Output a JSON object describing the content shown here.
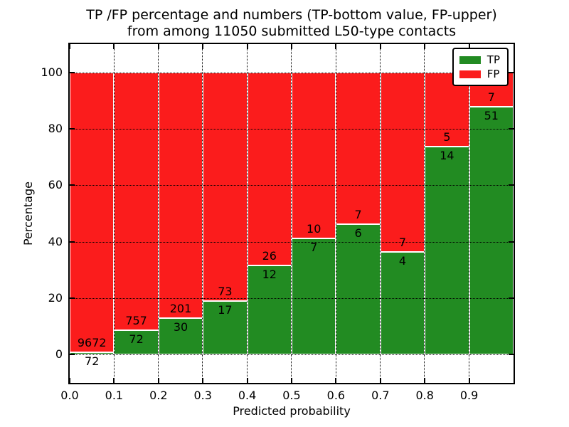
{
  "title": {
    "line1": "TP /FP percentage and numbers (TP-bottom value, FP-upper)",
    "line2": "from among 11050 submitted L50-type contacts"
  },
  "axes": {
    "ylabel": "Percentage",
    "xlabel": "Predicted probability",
    "yticks": [
      "0",
      "20",
      "40",
      "60",
      "80",
      "100"
    ],
    "xticks": [
      "0.0",
      "0.1",
      "0.2",
      "0.3",
      "0.4",
      "0.5",
      "0.6",
      "0.7",
      "0.8",
      "0.9"
    ]
  },
  "legend": {
    "position": "upper right",
    "items": [
      {
        "label": "TP",
        "color": "#228b22",
        "icon": "tp-swatch-icon"
      },
      {
        "label": "FP",
        "color": "#fb1c1c",
        "icon": "fp-swatch-icon"
      }
    ]
  },
  "colors": {
    "tp_green": "#228b22",
    "fp_red": "#fb1c1c",
    "axis_black": "#000000",
    "background": "#ffffff"
  },
  "chart_data": {
    "type": "bar",
    "stacked": true,
    "normalized_to_percent": true,
    "title": "TP /FP percentage and numbers (TP-bottom value, FP-upper) from among 11050 submitted L50-type contacts",
    "xlabel": "Predicted probability",
    "ylabel": "Percentage",
    "xlim": [
      0.0,
      1.0
    ],
    "ylim": [
      -10,
      110
    ],
    "ytick_values": [
      0,
      20,
      40,
      60,
      80,
      100
    ],
    "xtick_values": [
      0.0,
      0.1,
      0.2,
      0.3,
      0.4,
      0.5,
      0.6,
      0.7,
      0.8,
      0.9
    ],
    "grid": true,
    "bin_width": 0.1,
    "bin_starts": [
      0.0,
      0.1,
      0.2,
      0.3,
      0.4,
      0.5,
      0.6,
      0.7,
      0.8,
      0.9
    ],
    "series": [
      {
        "name": "TP",
        "color": "#228b22",
        "counts": [
          72,
          72,
          30,
          17,
          12,
          7,
          6,
          4,
          14,
          51
        ]
      },
      {
        "name": "FP",
        "color": "#fb1c1c",
        "counts": [
          9672,
          757,
          201,
          73,
          26,
          10,
          7,
          7,
          5,
          7
        ]
      }
    ],
    "tp_percent_of_bin": [
      0.74,
      8.69,
      12.99,
      18.89,
      31.58,
      41.18,
      46.15,
      36.36,
      73.68,
      87.93
    ],
    "total_contacts": 11050,
    "legend_position": "upper right"
  }
}
